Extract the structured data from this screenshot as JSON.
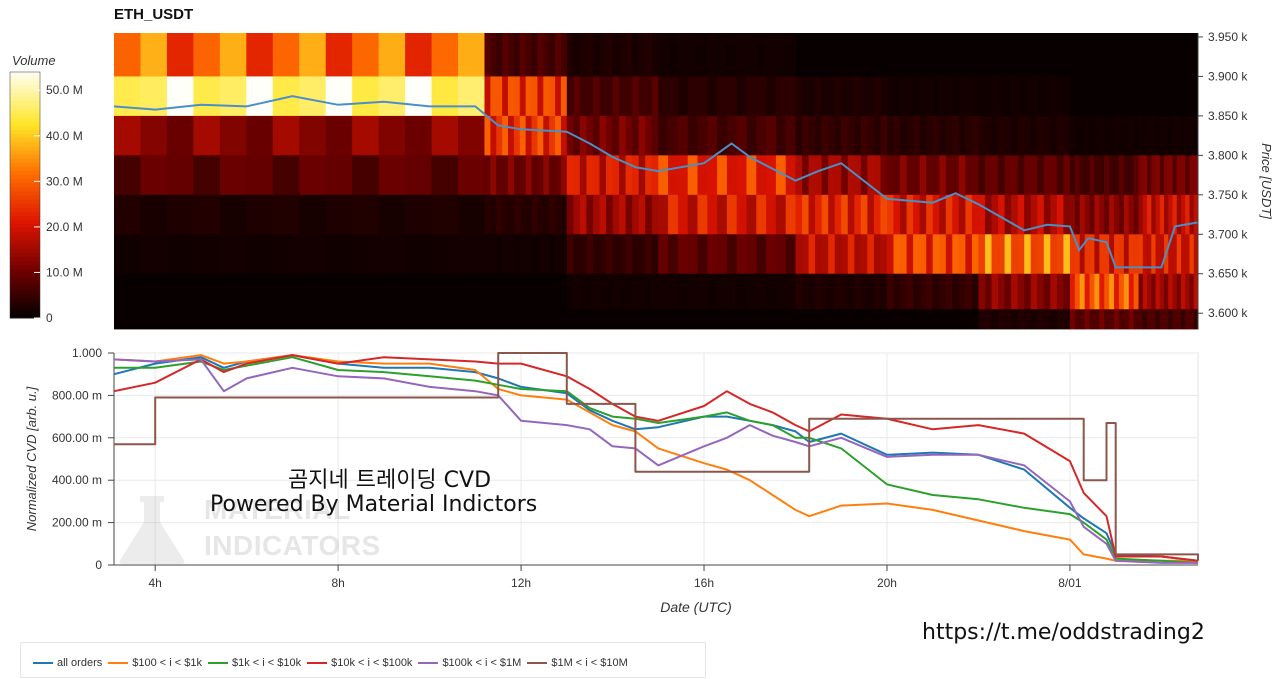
{
  "title": "ETH_USDT",
  "overlay": {
    "line1": "곰지네 트레이딩 CVD",
    "line2": "Powered By Material Indictors",
    "url": "https://t.me/oddstrading2"
  },
  "watermark": {
    "line1": "MATERIAL",
    "line2": "INDICATORS"
  },
  "colors": {
    "all_orders": "#1f77b4",
    "s100_1k": "#ff7f0e",
    "s1k_10k": "#2ca02c",
    "s10k_100k": "#d62728",
    "s100k_1m": "#9467bd",
    "s1m_10m": "#8c564b"
  },
  "chart_data": [
    {
      "type": "heatmap",
      "title": "ETH_USDT",
      "colorbar": {
        "label": "Volume",
        "ticks": [
          "50.0 M",
          "40.0 M",
          "30.0 M",
          "20.0 M",
          "10.0 M",
          "0"
        ],
        "tick_values": [
          50,
          40,
          30,
          20,
          10,
          0
        ],
        "range": [
          0,
          54
        ],
        "colormap": "black-red-orange-yellow-white"
      },
      "ylabel": "Price [USDT]",
      "y_ticks": [
        "3.950 k",
        "3.900 k",
        "3.850 k",
        "3.800 k",
        "3.750 k",
        "3.700 k",
        "3.650 k",
        "3.600 k"
      ],
      "y_tick_values": [
        3950,
        3900,
        3850,
        3800,
        3750,
        3700,
        3650,
        3600
      ],
      "ylim": [
        3580,
        3955
      ],
      "x_range_hours": [
        3.1,
        26.8
      ],
      "price_bands": [
        3925,
        3875,
        3825,
        3775,
        3725,
        3675,
        3625,
        3585
      ],
      "heat_segments": [
        {
          "start": 3.1,
          "end": 11.2,
          "levels": [
            30,
            52,
            12,
            8,
            2,
            1,
            0,
            0
          ]
        },
        {
          "start": 11.2,
          "end": 13.0,
          "levels": [
            6,
            25,
            24,
            10,
            3,
            1,
            0,
            0
          ]
        },
        {
          "start": 13.0,
          "end": 15.0,
          "levels": [
            2,
            6,
            10,
            20,
            14,
            4,
            1,
            0
          ]
        },
        {
          "start": 15.0,
          "end": 18.0,
          "levels": [
            1,
            3,
            6,
            23,
            20,
            8,
            1,
            0
          ]
        },
        {
          "start": 18.0,
          "end": 20.0,
          "levels": [
            0,
            2,
            4,
            14,
            22,
            18,
            2,
            0
          ]
        },
        {
          "start": 20.0,
          "end": 22.0,
          "levels": [
            0,
            1,
            3,
            10,
            20,
            26,
            4,
            0
          ]
        },
        {
          "start": 22.0,
          "end": 24.0,
          "levels": [
            0,
            1,
            2,
            8,
            16,
            30,
            12,
            2
          ]
        },
        {
          "start": 24.0,
          "end": 25.5,
          "levels": [
            0,
            0,
            1,
            6,
            12,
            22,
            28,
            8
          ]
        },
        {
          "start": 25.5,
          "end": 26.8,
          "levels": [
            0,
            0,
            1,
            10,
            18,
            20,
            14,
            6
          ]
        }
      ],
      "price_series": {
        "name": "",
        "color": "#4a8fc8",
        "x": [
          3.1,
          4.0,
          5.0,
          6.0,
          7.0,
          8.0,
          9.0,
          10.0,
          11.0,
          11.5,
          12.0,
          13.0,
          13.5,
          14.0,
          14.5,
          15.0,
          16.0,
          16.6,
          17.0,
          18.0,
          18.5,
          19.0,
          20.0,
          21.0,
          21.5,
          22.0,
          23.0,
          23.5,
          24.0,
          24.2,
          24.4,
          24.8,
          25.0,
          25.5,
          26.0,
          26.3,
          26.8
        ],
        "y": [
          3862,
          3858,
          3864,
          3862,
          3875,
          3864,
          3868,
          3862,
          3862,
          3838,
          3833,
          3830,
          3815,
          3798,
          3785,
          3780,
          3790,
          3815,
          3798,
          3768,
          3780,
          3790,
          3745,
          3740,
          3752,
          3738,
          3705,
          3712,
          3710,
          3680,
          3695,
          3690,
          3658,
          3658,
          3658,
          3710,
          3715
        ]
      }
    },
    {
      "type": "line",
      "xlabel": "Date (UTC)",
      "ylabel": "Normalized CVD [arb. u.]",
      "x_ticks": [
        "4h",
        "8h",
        "12h",
        "16h",
        "20h",
        "8/01"
      ],
      "x_tick_hours": [
        4,
        8,
        12,
        16,
        20,
        24
      ],
      "x_range_hours": [
        3.1,
        26.8
      ],
      "y_ticks": [
        "1.000",
        "800.00 m",
        "600.00 m",
        "400.00 m",
        "200.00 m",
        "0"
      ],
      "y_tick_values": [
        1.0,
        0.8,
        0.6,
        0.4,
        0.2,
        0
      ],
      "ylim": [
        0,
        1.0
      ],
      "grid": true,
      "legend_position": "bottom",
      "x": [
        3.1,
        4.0,
        5.0,
        5.5,
        6.0,
        7.0,
        8.0,
        9.0,
        10.0,
        11.0,
        11.5,
        12.0,
        13.0,
        13.5,
        14.0,
        14.5,
        15.0,
        16.0,
        16.5,
        17.0,
        17.5,
        18.0,
        18.3,
        19.0,
        20.0,
        21.0,
        22.0,
        23.0,
        24.0,
        24.3,
        24.8,
        25.0,
        26.0,
        26.8
      ],
      "series": [
        {
          "name": "all orders",
          "values": [
            0.9,
            0.95,
            0.98,
            0.93,
            0.96,
            0.99,
            0.95,
            0.93,
            0.93,
            0.91,
            0.88,
            0.84,
            0.81,
            0.73,
            0.68,
            0.64,
            0.65,
            0.7,
            0.7,
            0.68,
            0.66,
            0.63,
            0.58,
            0.62,
            0.52,
            0.53,
            0.52,
            0.45,
            0.27,
            0.22,
            0.15,
            0.05,
            0.04,
            0.02
          ]
        },
        {
          "name": "$100 < i < $1k",
          "values": [
            0.97,
            0.96,
            0.99,
            0.95,
            0.96,
            0.99,
            0.96,
            0.95,
            0.95,
            0.92,
            0.83,
            0.8,
            0.78,
            0.72,
            0.66,
            0.63,
            0.55,
            0.48,
            0.45,
            0.4,
            0.33,
            0.26,
            0.23,
            0.28,
            0.29,
            0.26,
            0.21,
            0.16,
            0.12,
            0.05,
            0.03,
            0.02,
            0.02,
            0.02
          ]
        },
        {
          "name": "$1k < i < $10k",
          "values": [
            0.93,
            0.93,
            0.96,
            0.92,
            0.94,
            0.98,
            0.92,
            0.91,
            0.89,
            0.87,
            0.85,
            0.83,
            0.82,
            0.74,
            0.7,
            0.69,
            0.67,
            0.7,
            0.72,
            0.68,
            0.66,
            0.6,
            0.6,
            0.55,
            0.38,
            0.33,
            0.31,
            0.27,
            0.24,
            0.2,
            0.12,
            0.03,
            0.02,
            0.01
          ]
        },
        {
          "name": "$10k < i < $100k",
          "values": [
            0.82,
            0.86,
            0.97,
            0.91,
            0.95,
            0.99,
            0.95,
            0.98,
            0.97,
            0.96,
            0.95,
            0.95,
            0.89,
            0.83,
            0.76,
            0.7,
            0.68,
            0.75,
            0.82,
            0.76,
            0.72,
            0.66,
            0.63,
            0.71,
            0.69,
            0.64,
            0.66,
            0.62,
            0.49,
            0.34,
            0.23,
            0.04,
            0.04,
            0.02
          ]
        },
        {
          "name": "$100k < i < $1M",
          "values": [
            0.97,
            0.96,
            0.97,
            0.82,
            0.88,
            0.93,
            0.89,
            0.88,
            0.84,
            0.82,
            0.8,
            0.68,
            0.66,
            0.64,
            0.56,
            0.55,
            0.47,
            0.56,
            0.6,
            0.66,
            0.61,
            0.58,
            0.56,
            0.6,
            0.51,
            0.52,
            0.52,
            0.47,
            0.3,
            0.18,
            0.1,
            0.02,
            0.01,
            0.01
          ]
        },
        {
          "name": "$1M < i < $10M",
          "values": [
            0.57,
            0.79,
            0.79,
            0.79,
            0.79,
            0.79,
            0.79,
            0.79,
            0.79,
            0.79,
            1.0,
            1.0,
            0.76,
            0.76,
            0.76,
            0.44,
            0.44,
            0.44,
            0.44,
            0.44,
            0.44,
            0.44,
            0.69,
            0.69,
            0.69,
            0.69,
            0.69,
            0.69,
            0.69,
            0.4,
            0.67,
            0.05,
            0.05,
            0.02
          ]
        }
      ]
    }
  ]
}
